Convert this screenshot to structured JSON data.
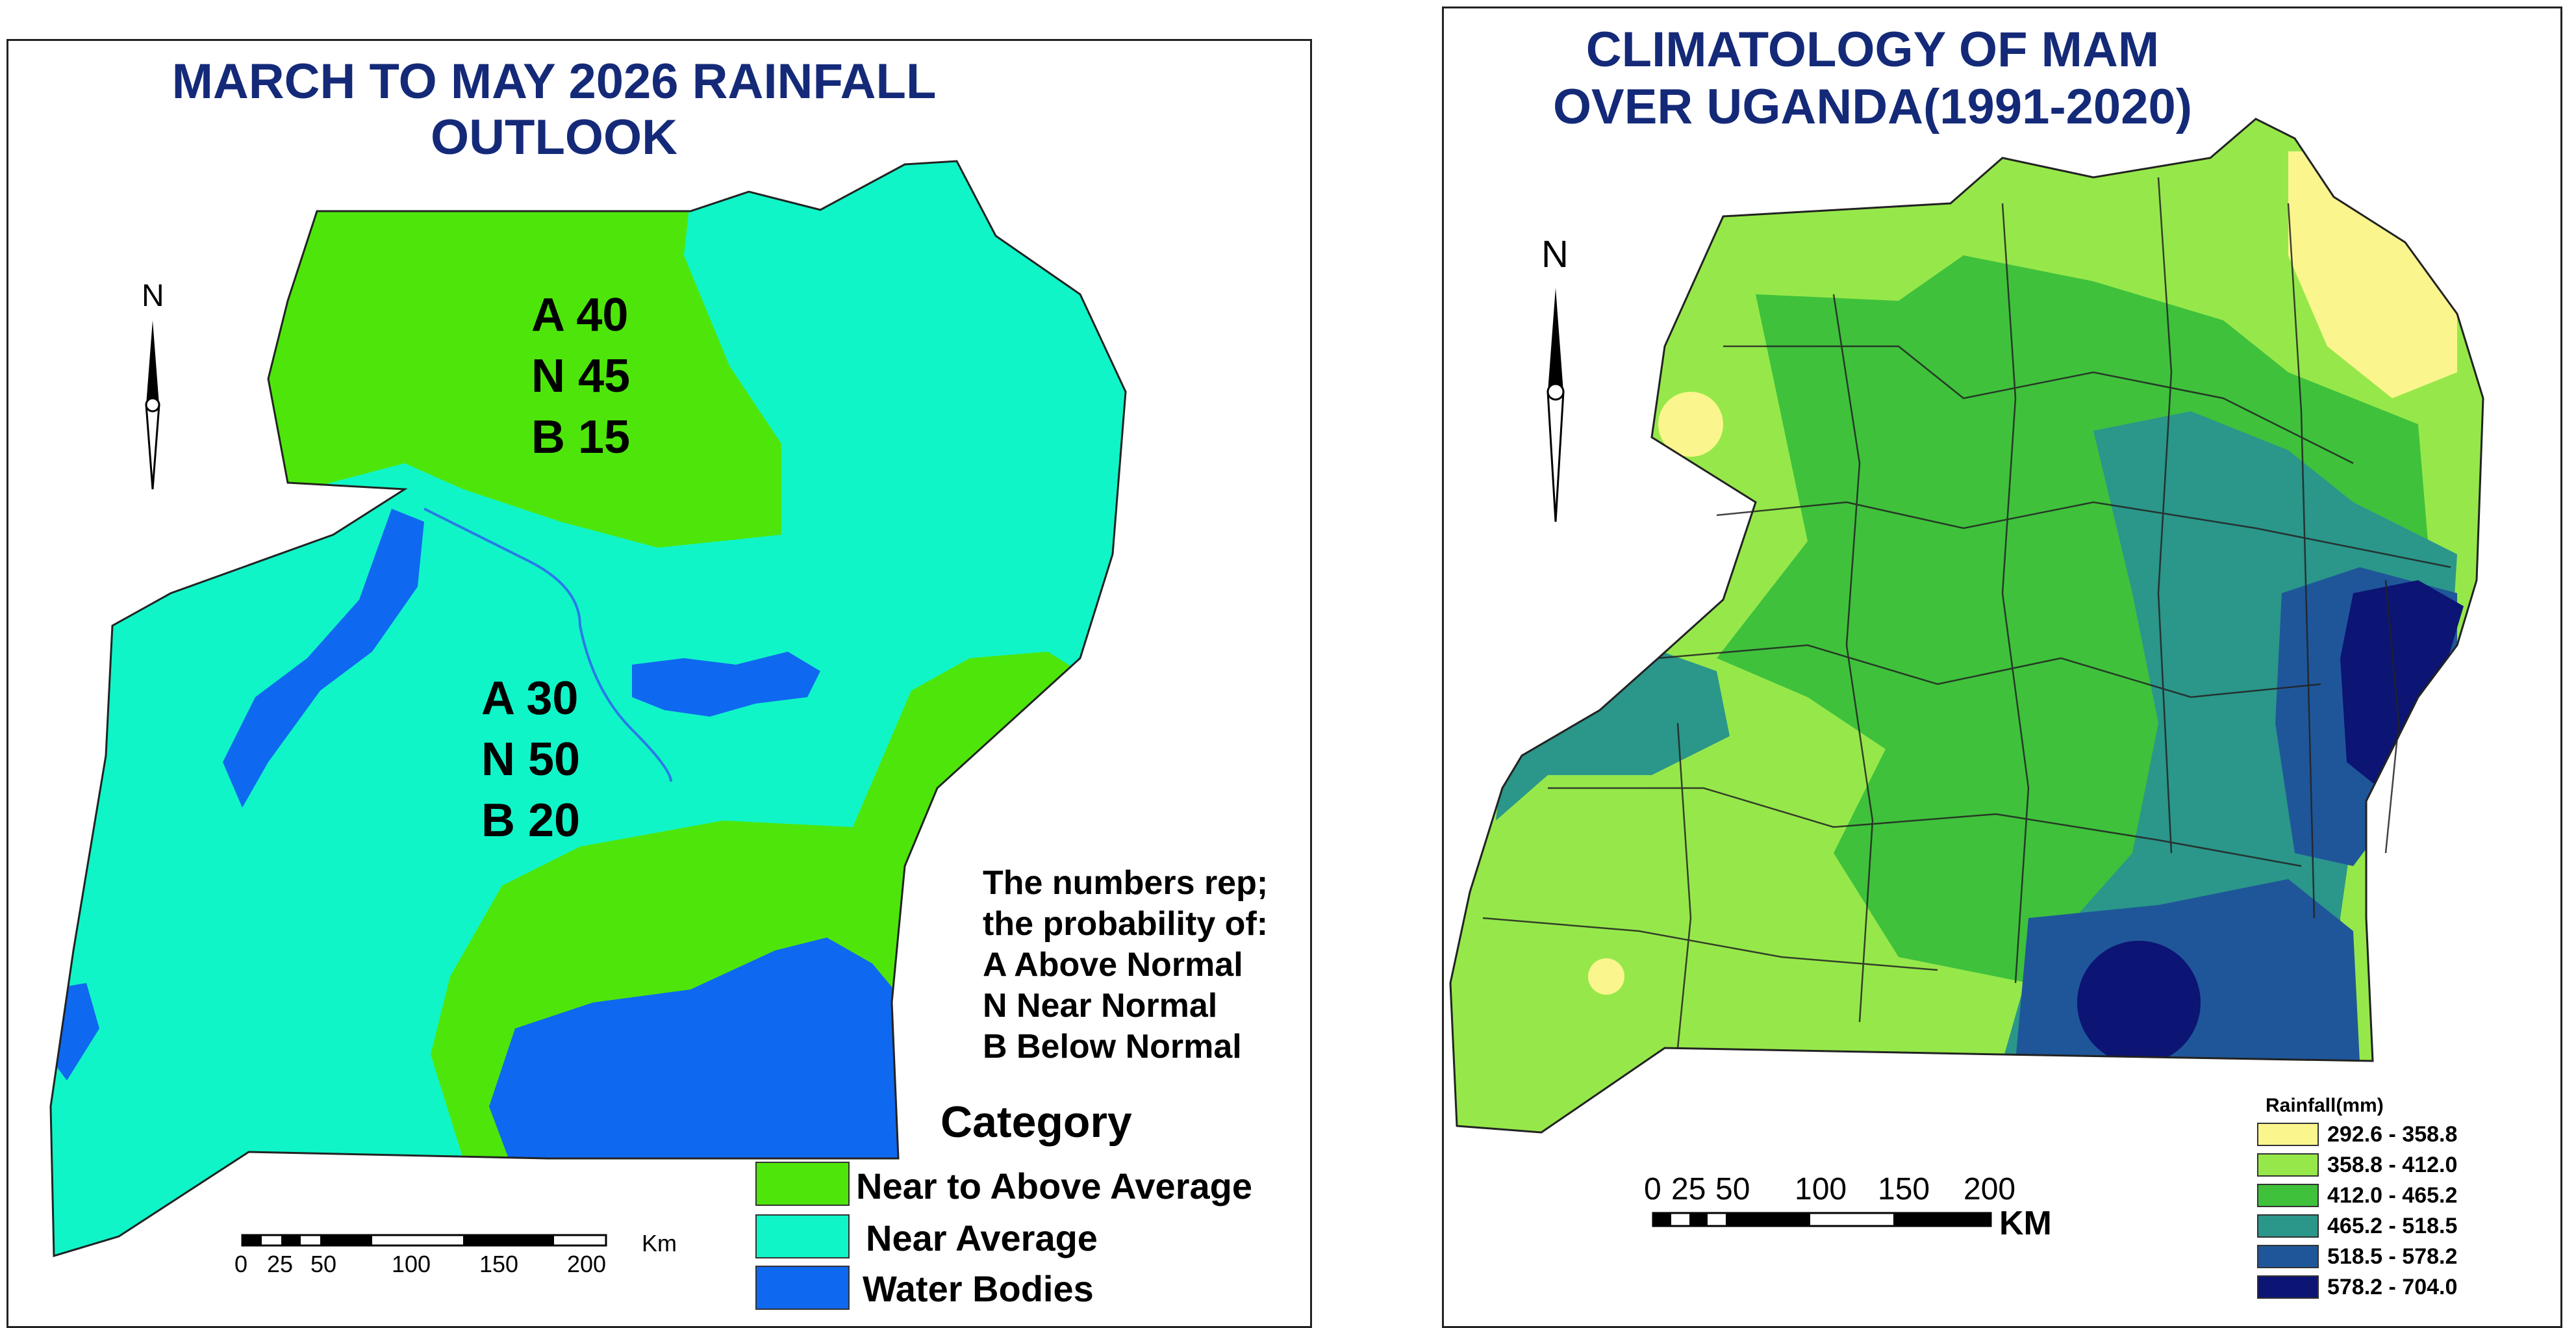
{
  "left": {
    "title_line1": "MARCH TO MAY 2026 RAINFALL",
    "title_line2": "OUTLOOK",
    "north": "N",
    "north_prob": {
      "a": "A 40",
      "n": "N 45",
      "b": "B 15"
    },
    "south_prob": {
      "a": "A 30",
      "n": "N 50",
      "b": "B 20"
    },
    "note": [
      "The numbers rep;",
      "the probability of:",
      "A Above Normal",
      "N Near Normal",
      "B Below Normal"
    ],
    "legend": {
      "title": "Category",
      "items": [
        {
          "label": "Near to Above Average",
          "color": "#4ee60a"
        },
        {
          "label": "Near Average",
          "color": "#10f5c8"
        },
        {
          "label": "Water Bodies",
          "color": "#0f68f0"
        }
      ]
    },
    "scale": {
      "ticks": [
        "0",
        "25",
        "50",
        "100",
        "150",
        "200"
      ],
      "unit": "Km"
    }
  },
  "right": {
    "title_line1": "CLIMATOLOGY OF MAM",
    "title_line2": "OVER UGANDA(1991-2020)",
    "north": "N",
    "legend": {
      "title": "Rainfall(mm)",
      "items": [
        {
          "label": "292.6 - 358.8",
          "color": "#fbf58e"
        },
        {
          "label": "358.8 - 412.0",
          "color": "#96e84a"
        },
        {
          "label": "412.0 - 465.2",
          "color": "#3fc13c"
        },
        {
          "label": "465.2 - 518.5",
          "color": "#2b968a"
        },
        {
          "label": "518.5 - 578.2",
          "color": "#1f5699"
        },
        {
          "label": "578.2 - 704.0",
          "color": "#0c1474"
        }
      ]
    },
    "scale": {
      "ticks": [
        "0",
        "25",
        "50",
        "100",
        "150",
        "200"
      ],
      "unit": "KM"
    }
  }
}
